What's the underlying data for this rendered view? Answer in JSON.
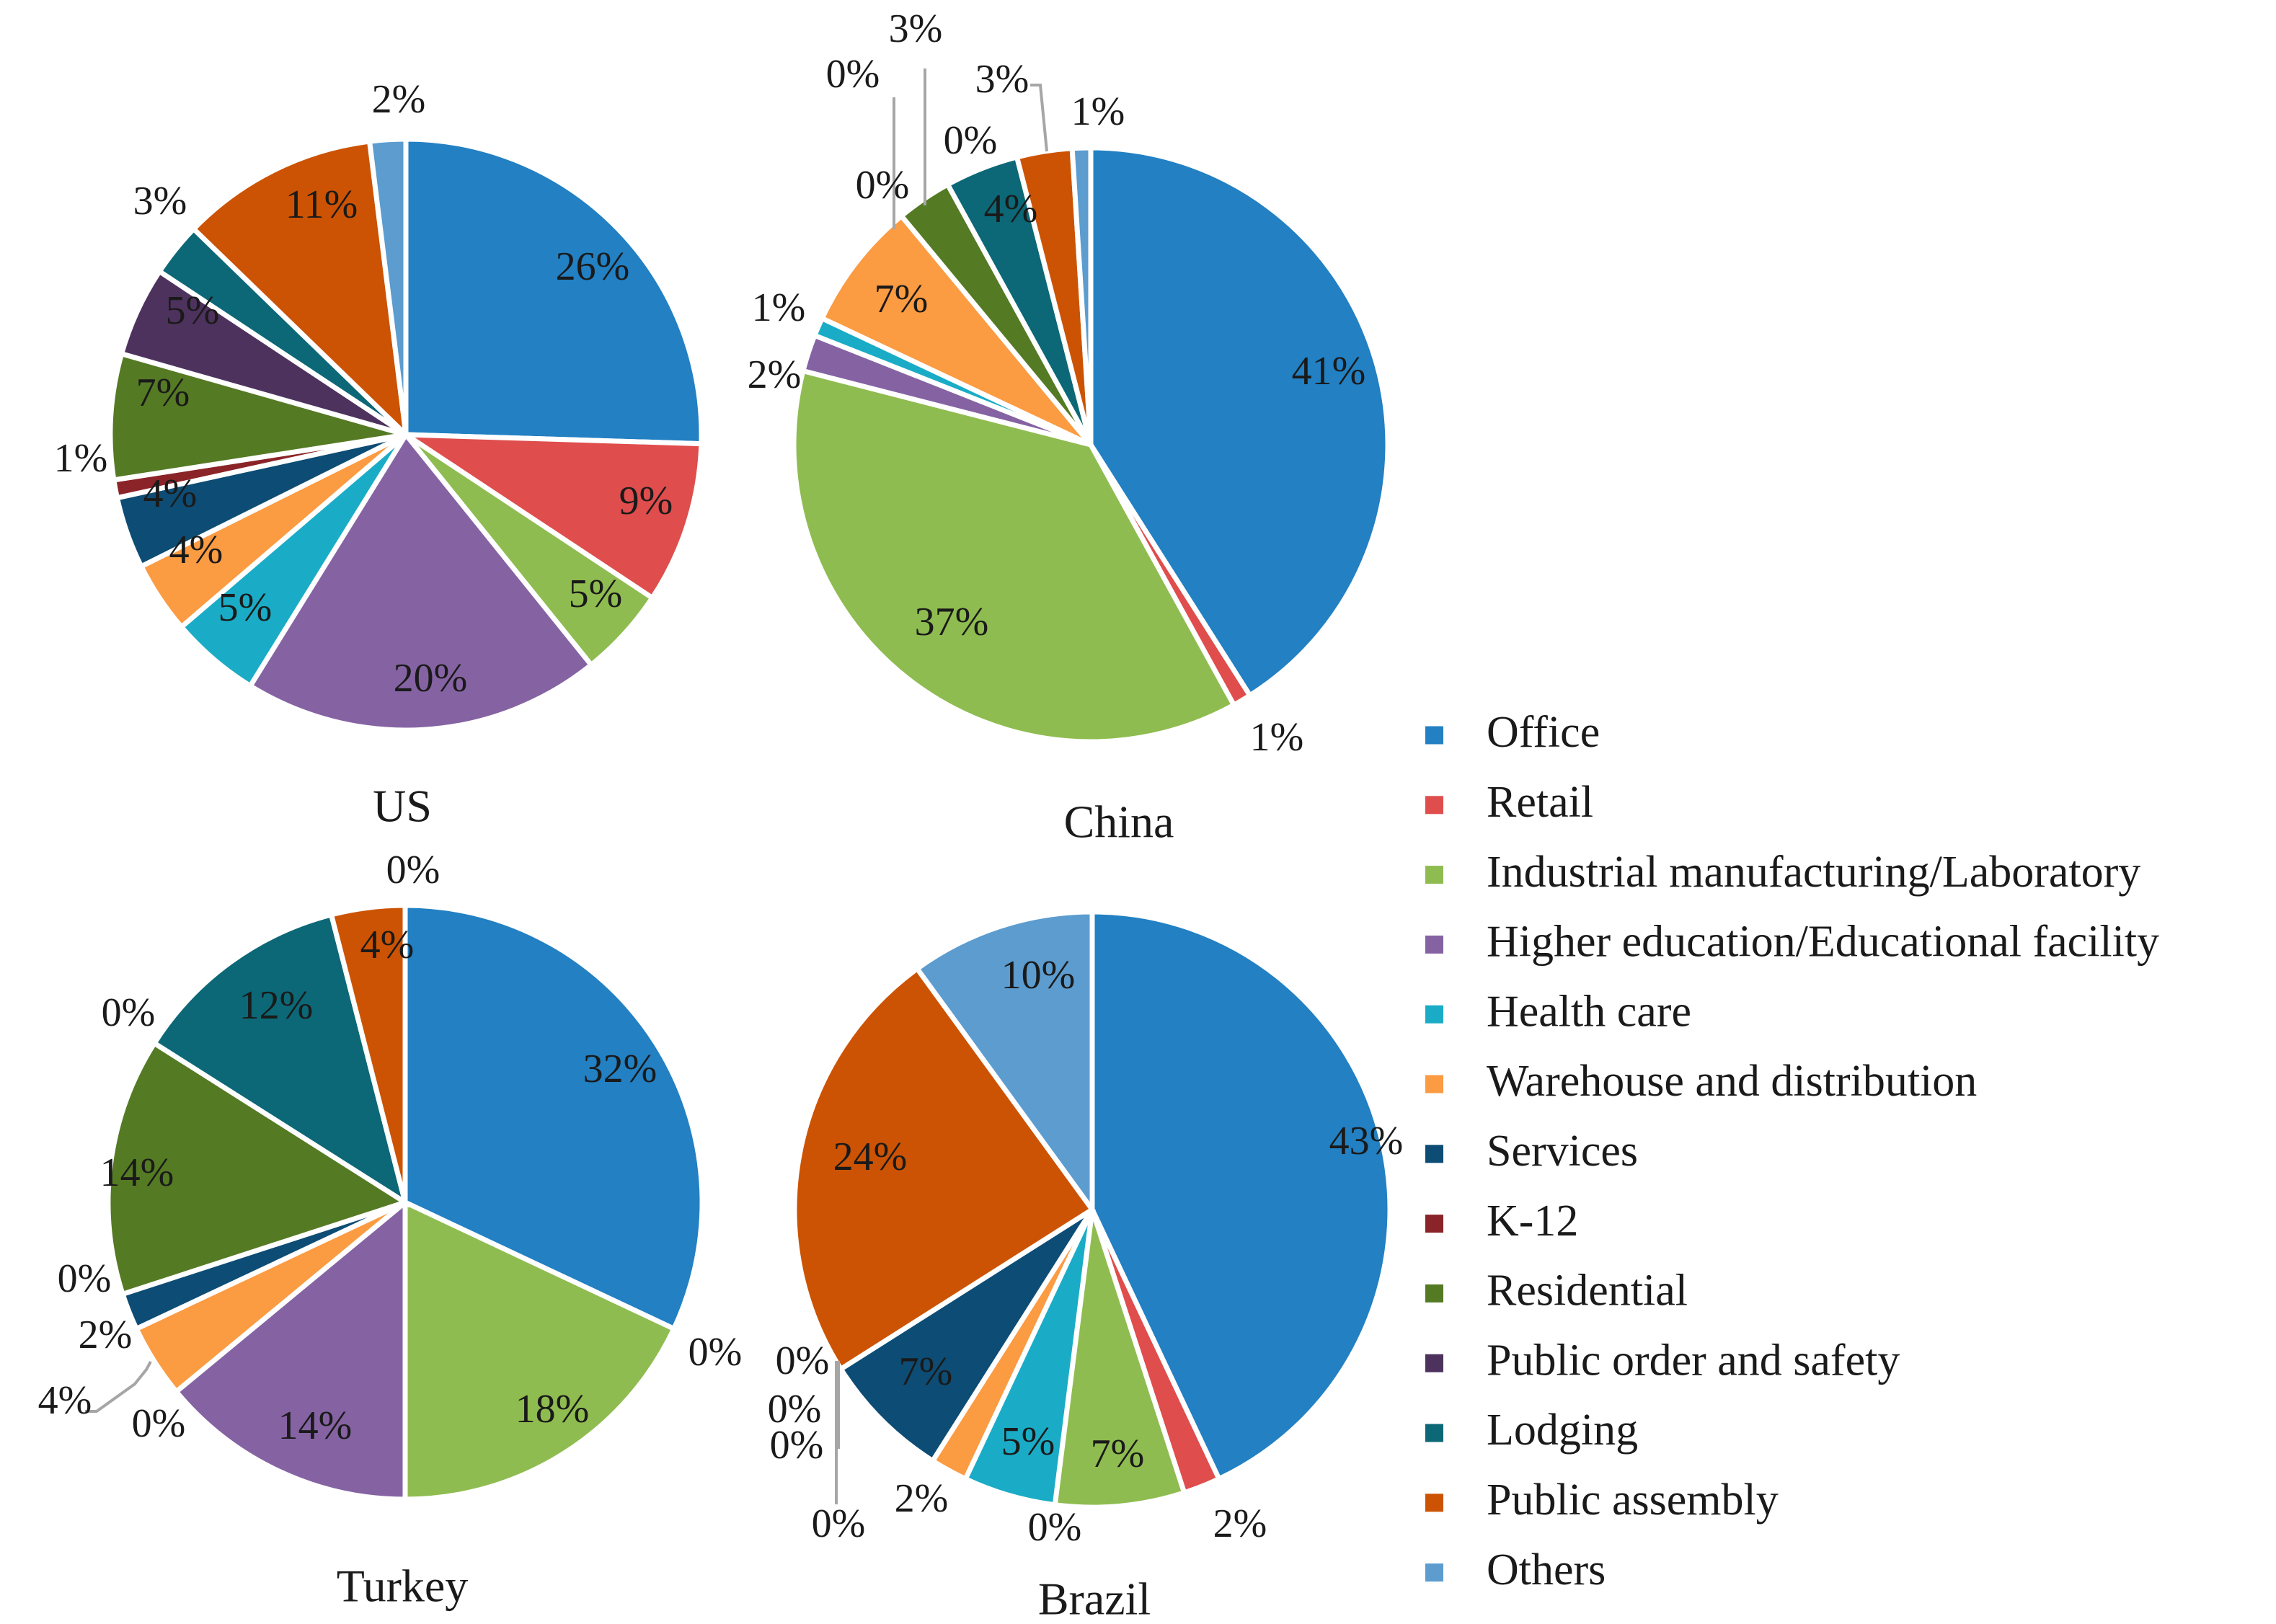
{
  "chart_data": {
    "type": "pie",
    "categories": [
      "Office",
      "Retail",
      "Industrial manufacturing/Laboratory",
      "Higher education/Educational facility",
      "Health care",
      "Warehouse and distribution",
      "Services",
      "K-12",
      "Residential",
      "Public order and safety",
      "Lodging",
      "Public assembly",
      "Others"
    ],
    "colors": [
      "#2280c3",
      "#df4d4d",
      "#8fbc50",
      "#8563a3",
      "#1aacc6",
      "#fb9b42",
      "#0d4c74",
      "#8b2428",
      "#557a24",
      "#4e325e",
      "#0c6876",
      "#cc5303",
      "#5c9ccf"
    ],
    "legend_position": "right",
    "pies": [
      {
        "name": "US",
        "values": [
          26,
          9,
          5,
          20,
          5,
          4,
          4,
          1,
          7,
          5,
          3,
          11,
          2
        ],
        "labels": [
          "26%",
          "9%",
          "5%",
          "20%",
          "5%",
          "4%",
          "4%",
          "1%",
          "7%",
          "5%",
          "3%",
          "11%",
          "2%"
        ]
      },
      {
        "name": "China",
        "values": [
          41,
          1,
          37,
          2,
          1,
          7,
          0,
          0,
          3,
          0,
          4,
          3,
          1
        ],
        "labels": [
          "41%",
          "1%",
          "37%",
          "2%",
          "1%",
          "7%",
          "0%",
          "0%",
          "3%",
          "0%",
          "4%",
          "3%",
          "1%"
        ]
      },
      {
        "name": "Turkey",
        "values": [
          32,
          0,
          18,
          14,
          0,
          4,
          2,
          0,
          14,
          0,
          12,
          4,
          0
        ],
        "labels": [
          "32%",
          "0%",
          "18%",
          "14%",
          "0%",
          "4%",
          "2%",
          "0%",
          "14%",
          "0%",
          "12%",
          "4%",
          "0%"
        ]
      },
      {
        "name": "Brazil",
        "values": [
          43,
          2,
          7,
          0,
          5,
          2,
          7,
          0,
          0,
          0,
          0,
          24,
          10
        ],
        "labels": [
          "43%",
          "2%",
          "7%",
          "0%",
          "5%",
          "2%",
          "7%",
          "0%",
          "0%",
          "0%",
          "0%",
          "24%",
          "10%"
        ]
      }
    ]
  }
}
